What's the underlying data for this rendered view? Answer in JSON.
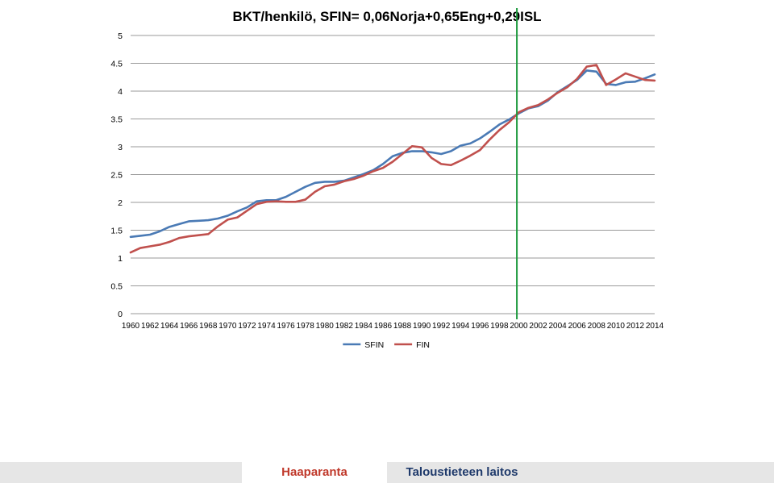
{
  "chart_data": {
    "type": "line",
    "title": "BKT/henkilö, SFIN= 0,06Norja+0,65Eng+0,29ISL",
    "xlabel": "",
    "ylabel": "",
    "ylim": [
      0,
      5
    ],
    "yticks": [
      "0",
      "0.5",
      "1",
      "1.5",
      "2",
      "2.5",
      "3",
      "3.5",
      "4",
      "4.5",
      "5"
    ],
    "xticks": [
      "1960",
      "1962",
      "1964",
      "1966",
      "1968",
      "1970",
      "1972",
      "1974",
      "1976",
      "1978",
      "1980",
      "1982",
      "1984",
      "1986",
      "1988",
      "1990",
      "1992",
      "1994",
      "1996",
      "1998",
      "2000",
      "2002",
      "2004",
      "2006",
      "2008",
      "2010",
      "2012",
      "2014"
    ],
    "x": [
      1960,
      1961,
      1962,
      1963,
      1964,
      1965,
      1966,
      1967,
      1968,
      1969,
      1970,
      1971,
      1972,
      1973,
      1974,
      1975,
      1976,
      1977,
      1978,
      1979,
      1980,
      1981,
      1982,
      1983,
      1984,
      1985,
      1986,
      1987,
      1988,
      1989,
      1990,
      1991,
      1992,
      1993,
      1994,
      1995,
      1996,
      1997,
      1998,
      1999,
      2000,
      2001,
      2002,
      2003,
      2004,
      2005,
      2006,
      2007,
      2008,
      2009,
      2010,
      2011,
      2012,
      2013,
      2014
    ],
    "series": [
      {
        "name": "SFIN",
        "color": "#4a7ab5",
        "values": [
          1.38,
          1.4,
          1.42,
          1.48,
          1.56,
          1.61,
          1.66,
          1.67,
          1.68,
          1.71,
          1.76,
          1.84,
          1.91,
          2.02,
          2.04,
          2.04,
          2.1,
          2.19,
          2.28,
          2.35,
          2.37,
          2.37,
          2.39,
          2.45,
          2.51,
          2.58,
          2.69,
          2.83,
          2.89,
          2.92,
          2.92,
          2.9,
          2.87,
          2.92,
          3.02,
          3.06,
          3.15,
          3.27,
          3.4,
          3.49,
          3.6,
          3.69,
          3.73,
          3.83,
          3.98,
          4.09,
          4.2,
          4.37,
          4.35,
          4.13,
          4.11,
          4.16,
          4.17,
          4.23,
          4.3
        ]
      },
      {
        "name": "FIN",
        "color": "#c0504d",
        "values": [
          1.1,
          1.18,
          1.21,
          1.24,
          1.29,
          1.36,
          1.39,
          1.41,
          1.43,
          1.57,
          1.69,
          1.73,
          1.85,
          1.97,
          2.01,
          2.02,
          2.01,
          2.01,
          2.05,
          2.19,
          2.29,
          2.32,
          2.38,
          2.42,
          2.48,
          2.56,
          2.62,
          2.73,
          2.87,
          3.01,
          2.99,
          2.8,
          2.69,
          2.67,
          2.75,
          2.84,
          2.94,
          3.13,
          3.3,
          3.44,
          3.62,
          3.7,
          3.75,
          3.85,
          3.97,
          4.07,
          4.22,
          4.44,
          4.47,
          4.11,
          4.21,
          4.32,
          4.26,
          4.2,
          4.19
        ]
      }
    ],
    "vertical_marker": {
      "x": 1999.8,
      "color": "#1e9a3e"
    },
    "legend_position": "bottom",
    "grid": true
  },
  "footer": {
    "left_label": "Haaparanta",
    "right_label": "Taloustieteen laitos"
  }
}
